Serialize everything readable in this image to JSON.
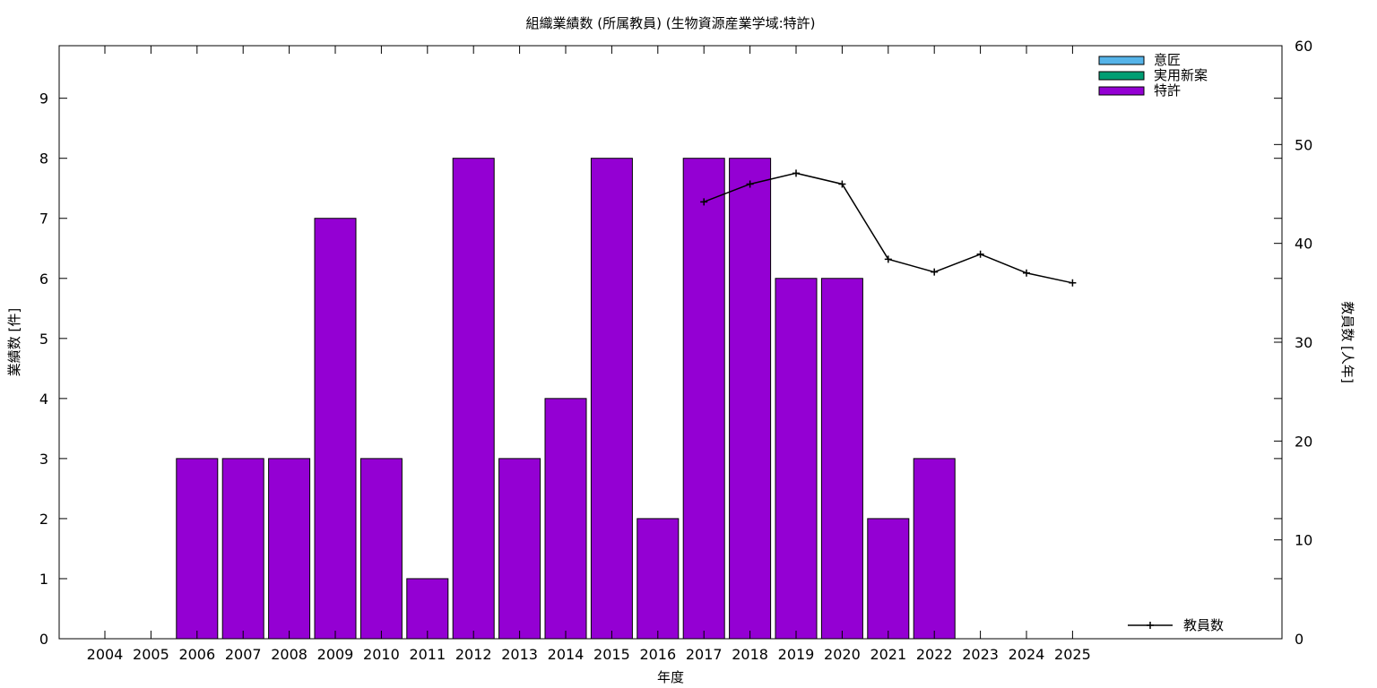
{
  "chart_data": {
    "type": "bar",
    "title": "組織業績数 (所属教員) (生物資源産業学域:特許)",
    "xlabel": "年度",
    "ylabel": "業績数 [件]",
    "y2label": "教員数 [人年]",
    "categories": [
      "2004",
      "2005",
      "2006",
      "2007",
      "2008",
      "2009",
      "2010",
      "2011",
      "2012",
      "2013",
      "2014",
      "2015",
      "2016",
      "2017",
      "2018",
      "2019",
      "2020",
      "2021",
      "2022",
      "2023",
      "2024",
      "2025"
    ],
    "ylim": [
      0,
      9.875
    ],
    "yticks": [
      0,
      1,
      2,
      3,
      4,
      5,
      6,
      7,
      8,
      9
    ],
    "y2lim": [
      0,
      60
    ],
    "y2ticks": [
      0,
      10,
      20,
      30,
      40,
      50,
      60
    ],
    "stack_series": [
      {
        "name": "意匠",
        "color": "#56b4e9",
        "values": [
          0,
          0,
          0,
          0,
          0,
          0,
          0,
          0,
          0,
          0,
          0,
          0,
          0,
          0,
          0,
          0,
          0,
          0,
          0,
          0,
          0,
          0
        ]
      },
      {
        "name": "実用新案",
        "color": "#009e73",
        "values": [
          0,
          0,
          0,
          0,
          0,
          0,
          0,
          0,
          0,
          0,
          0,
          0,
          0,
          0,
          0,
          0,
          0,
          0,
          0,
          0,
          0,
          0
        ]
      },
      {
        "name": "特許",
        "color": "#9400d3",
        "values": [
          0,
          0,
          3,
          3,
          3,
          7,
          3,
          1,
          8,
          3,
          4,
          8,
          2,
          8,
          8,
          6,
          6,
          2,
          3,
          0,
          0,
          0
        ]
      }
    ],
    "line_series": {
      "name": "教員数",
      "color": "#000000",
      "axis": "y2",
      "points": [
        {
          "x": "2017",
          "y": 44.2
        },
        {
          "x": "2018",
          "y": 46.0
        },
        {
          "x": "2019",
          "y": 47.1
        },
        {
          "x": "2020",
          "y": 46.0
        },
        {
          "x": "2021",
          "y": 38.4
        },
        {
          "x": "2022",
          "y": 37.1
        },
        {
          "x": "2023",
          "y": 38.9
        },
        {
          "x": "2024",
          "y": 37.0
        },
        {
          "x": "2025",
          "y": 36.0
        }
      ]
    },
    "grid": false,
    "legend_position": "top-right"
  }
}
